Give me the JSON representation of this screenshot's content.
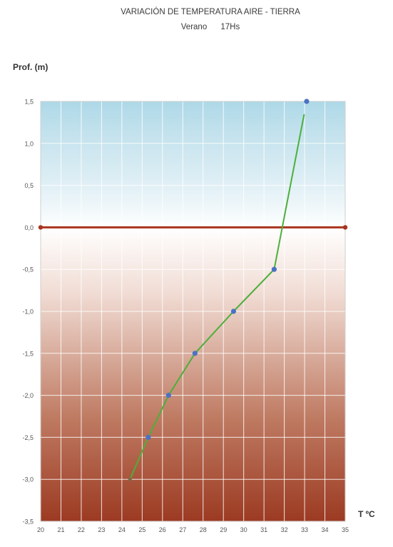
{
  "chart_data": {
    "type": "line",
    "title": "VARIACIÓN DE TEMPERATURA  AIRE -  TIERRA",
    "subtitle": "Verano      17Hs",
    "ylabel": "Prof. (m)",
    "xlabel": "T ºC",
    "xlim": [
      20,
      35
    ],
    "ylim": [
      -3.5,
      1.5
    ],
    "x_ticks": [
      20,
      21,
      22,
      23,
      24,
      25,
      26,
      27,
      28,
      29,
      30,
      31,
      32,
      33,
      34,
      35
    ],
    "y_ticks": [
      1.5,
      1.0,
      0.5,
      0.0,
      -0.5,
      -1.0,
      -1.5,
      -2.0,
      -2.5,
      -3.0,
      -3.5
    ],
    "y_tick_labels": [
      "1,5",
      "1,0",
      "0,5",
      "0,0",
      "-0,5",
      "-1,0",
      "-1,5",
      "-2,0",
      "-2,5",
      "-3,0",
      "-3,5"
    ],
    "grid": true,
    "series": [
      {
        "points": [
          {
            "x": 24.4,
            "y": -3.0
          },
          {
            "x": 25.3,
            "y": -2.5
          },
          {
            "x": 26.3,
            "y": -2.0
          },
          {
            "x": 27.6,
            "y": -1.5
          },
          {
            "x": 29.5,
            "y": -1.0
          },
          {
            "x": 31.5,
            "y": -0.5
          },
          {
            "x": 33.1,
            "y": 1.5
          }
        ],
        "line_color": "#4caf3a",
        "marker_color": "#4a72c4"
      }
    ],
    "reference_line": {
      "y": 0.0,
      "color": "#a8331f"
    },
    "background": {
      "air_color": "#a9d6e6",
      "ground_color": "#9c3a22"
    }
  }
}
